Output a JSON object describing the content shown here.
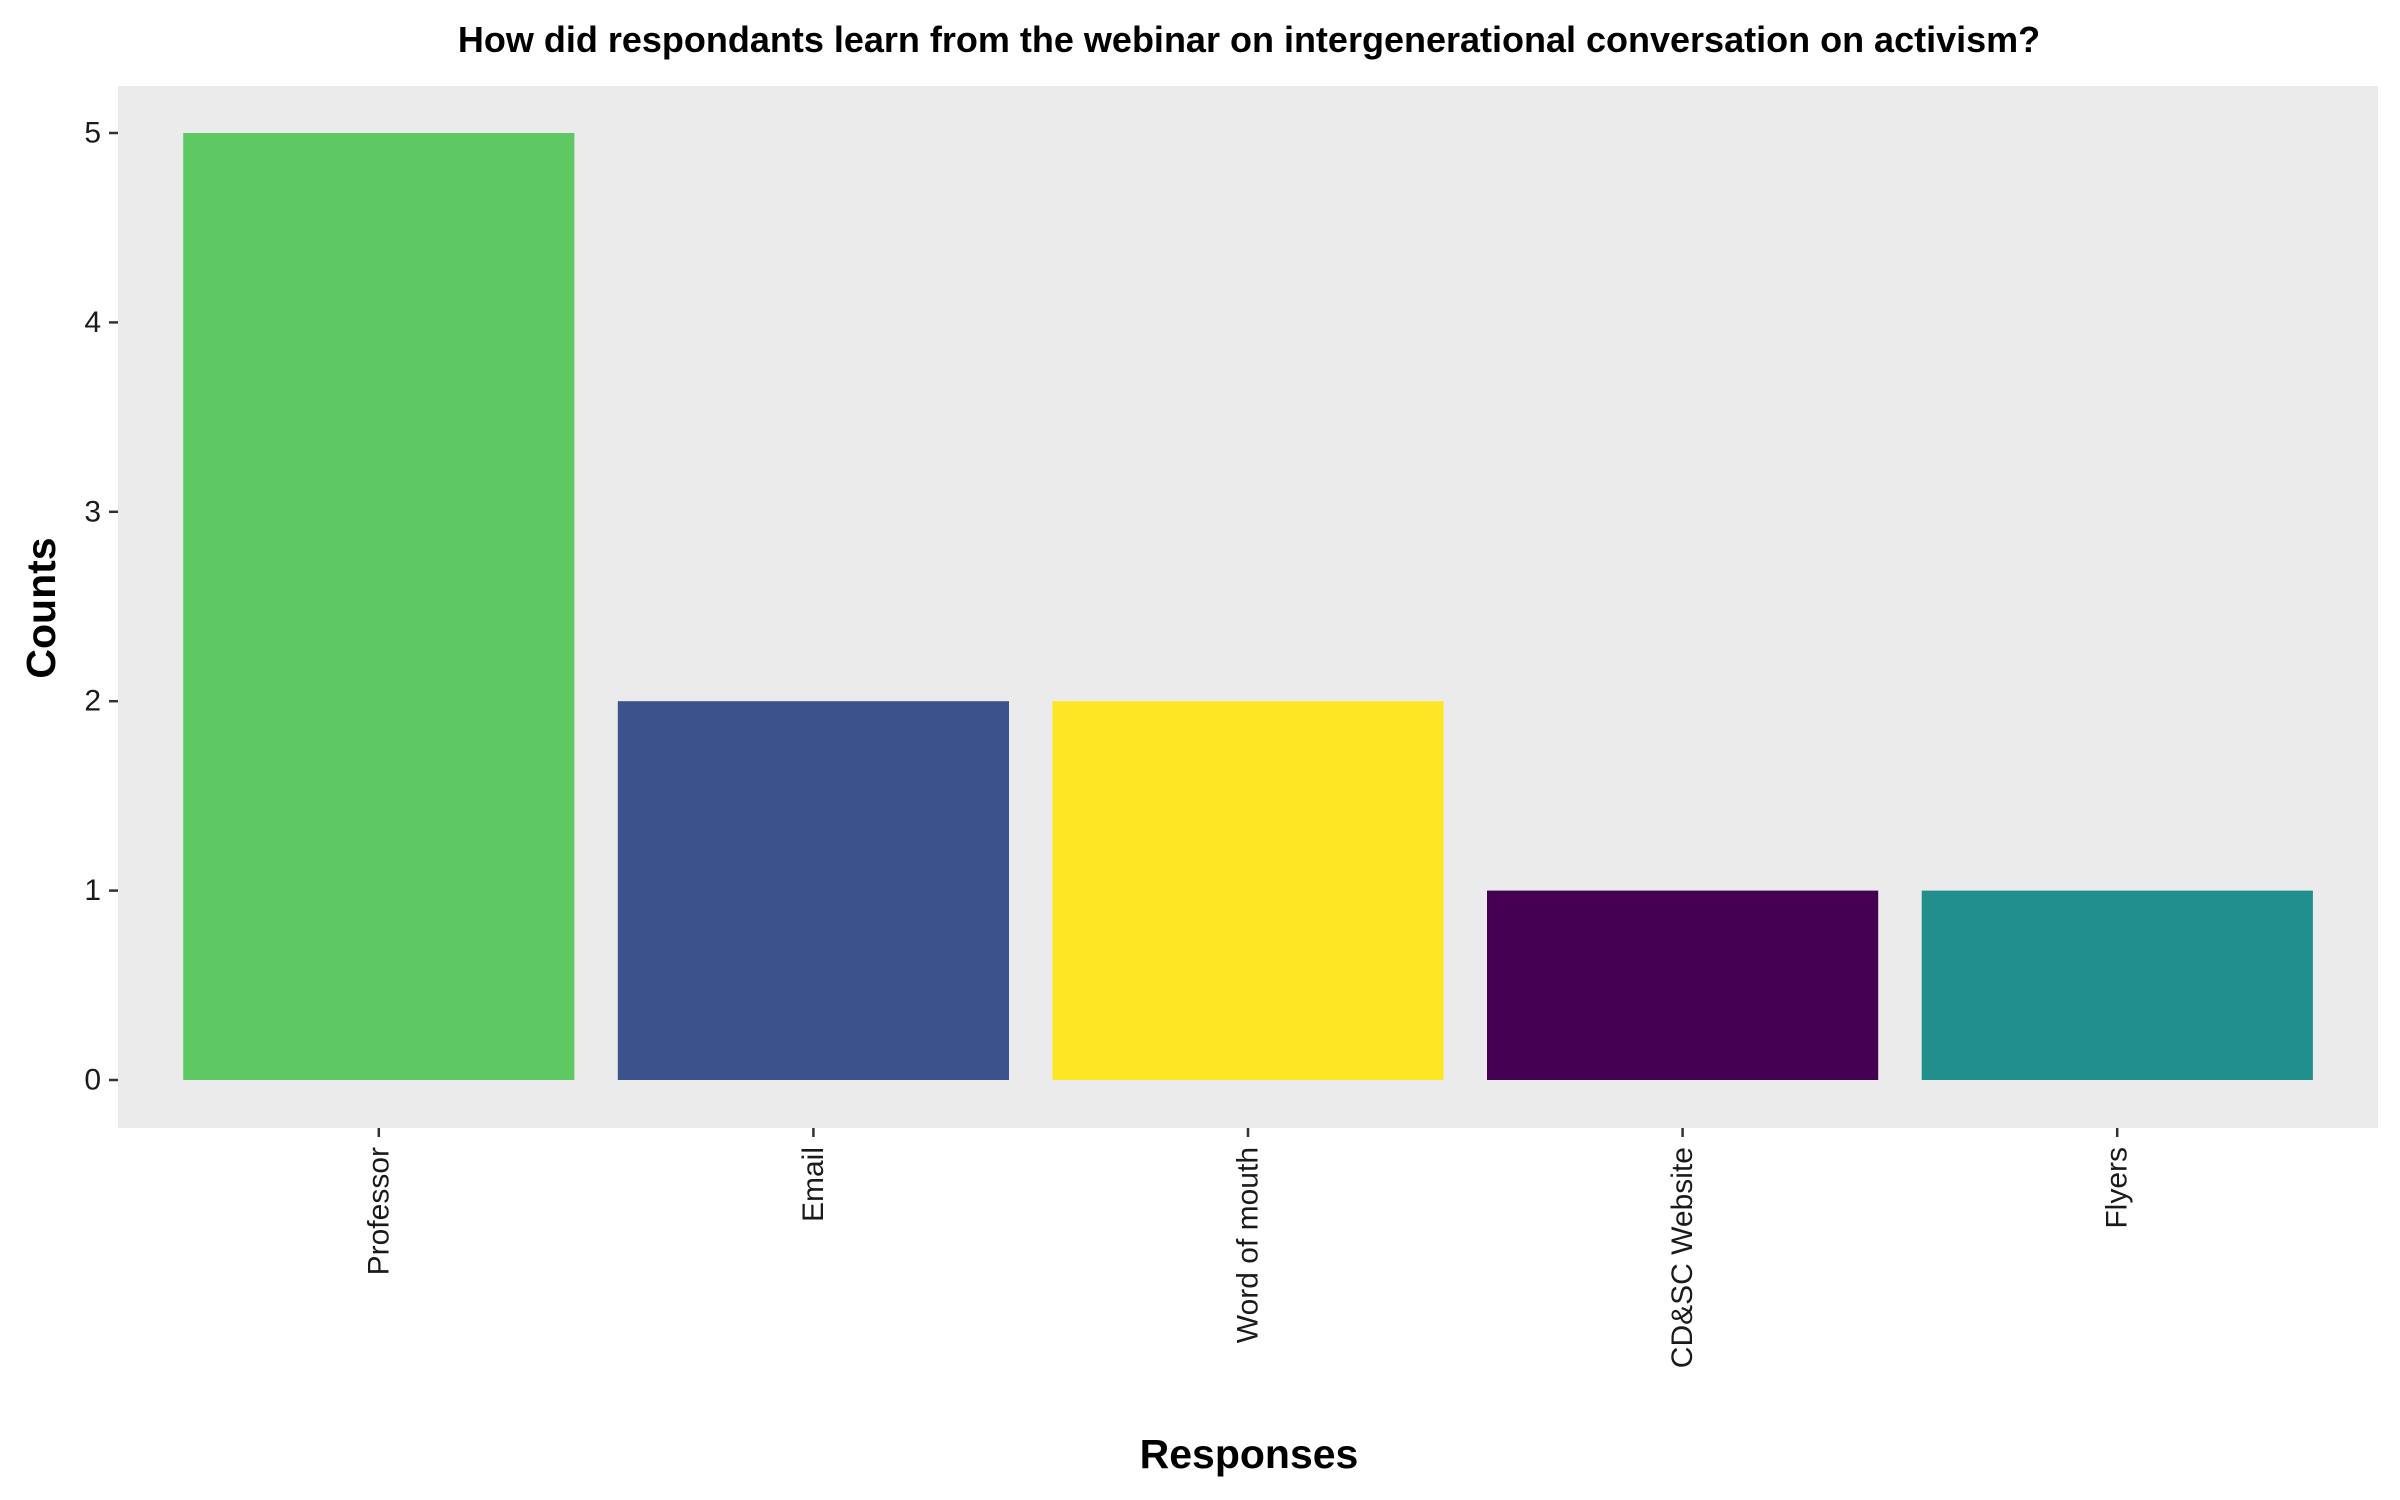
{
  "chart_data": {
    "type": "bar",
    "title": "How did respondants learn from the webinar on intergenerational conversation on activism?",
    "xlabel": "Responses",
    "ylabel": "Counts",
    "categories": [
      "Professor",
      "Email",
      "Word of mouth",
      "CD&SC Website",
      "Flyers"
    ],
    "values": [
      5,
      2,
      2,
      1,
      1
    ],
    "colors": [
      "#5EC962",
      "#3B528B",
      "#FDE725",
      "#440154",
      "#21908C"
    ],
    "ylim": [
      0,
      5
    ],
    "yticks": [
      0,
      1,
      2,
      3,
      4,
      5
    ],
    "panel_background": "#EBEBEB",
    "grid": false,
    "legend": "none",
    "x_tick_label_rotation": "vertical"
  }
}
